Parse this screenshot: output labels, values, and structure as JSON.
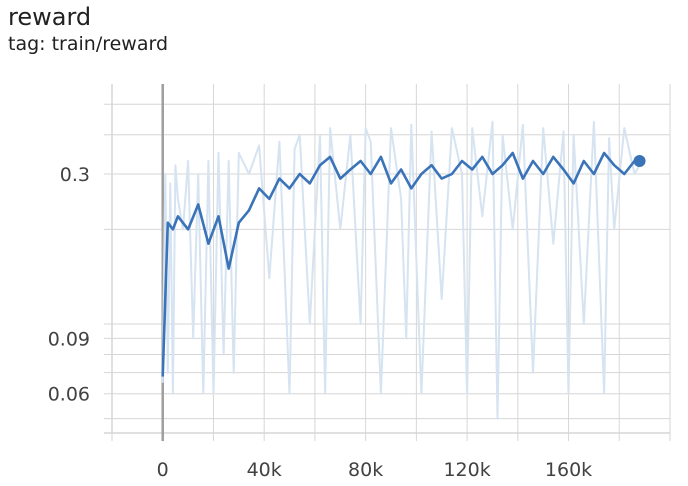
{
  "card": {
    "title": "reward",
    "subtitle": "tag: train/reward"
  },
  "colors": {
    "smoothed_line": "#3a73b7",
    "raw_line": "#d6e3f1",
    "grid": "#d6d6d6",
    "zero_axis": "#9e9e9e"
  },
  "chart_data": {
    "type": "line",
    "title": "reward",
    "subtitle": "tag: train/reward",
    "yscale": "log",
    "grid": true,
    "legend": "none",
    "x_ticks": [
      {
        "value": 0,
        "label": "0"
      },
      {
        "value": 40000,
        "label": "40k"
      },
      {
        "value": 80000,
        "label": "80k"
      },
      {
        "value": 120000,
        "label": "120k"
      },
      {
        "value": 160000,
        "label": "160k"
      }
    ],
    "y_ticks": [
      {
        "value": 0.3,
        "label": "0.3"
      },
      {
        "value": 0.09,
        "label": "0.09"
      },
      {
        "value": 0.06,
        "label": "0.06"
      }
    ],
    "xlim": [
      -20000,
      200000
    ],
    "ylim": [
      0.045,
      0.58
    ],
    "series": [
      {
        "role": "smoothed",
        "x": [
          0,
          2000,
          4000,
          6000,
          10000,
          14000,
          18000,
          22000,
          26000,
          30000,
          34000,
          38000,
          42000,
          46000,
          50000,
          54000,
          58000,
          62000,
          66000,
          70000,
          74000,
          78000,
          82000,
          86000,
          90000,
          94000,
          98000,
          102000,
          106000,
          110000,
          114000,
          118000,
          122000,
          126000,
          130000,
          134000,
          138000,
          142000,
          146000,
          150000,
          154000,
          158000,
          162000,
          166000,
          170000,
          174000,
          178000,
          182000,
          186000,
          188000
        ],
        "y": [
          0.068,
          0.21,
          0.2,
          0.22,
          0.2,
          0.24,
          0.18,
          0.22,
          0.15,
          0.21,
          0.23,
          0.27,
          0.25,
          0.29,
          0.27,
          0.3,
          0.28,
          0.32,
          0.34,
          0.29,
          0.31,
          0.33,
          0.3,
          0.34,
          0.28,
          0.31,
          0.27,
          0.3,
          0.32,
          0.29,
          0.3,
          0.33,
          0.31,
          0.34,
          0.3,
          0.32,
          0.35,
          0.29,
          0.33,
          0.3,
          0.34,
          0.31,
          0.28,
          0.33,
          0.3,
          0.35,
          0.32,
          0.3,
          0.33,
          0.33
        ]
      },
      {
        "role": "raw",
        "x": [
          0,
          1000,
          2000,
          3000,
          4000,
          5000,
          6000,
          8000,
          10000,
          12000,
          14000,
          16000,
          18000,
          20000,
          22000,
          24000,
          26000,
          28000,
          30000,
          34000,
          38000,
          42000,
          46000,
          50000,
          52000,
          54000,
          58000,
          62000,
          64000,
          66000,
          70000,
          74000,
          78000,
          80000,
          82000,
          86000,
          90000,
          94000,
          96000,
          98000,
          102000,
          106000,
          110000,
          114000,
          118000,
          120000,
          122000,
          126000,
          130000,
          132000,
          134000,
          138000,
          142000,
          146000,
          150000,
          154000,
          158000,
          160000,
          162000,
          166000,
          170000,
          174000,
          176000,
          178000,
          182000,
          186000,
          188000
        ],
        "y": [
          0.065,
          0.3,
          0.07,
          0.28,
          0.06,
          0.32,
          0.25,
          0.2,
          0.33,
          0.09,
          0.3,
          0.06,
          0.33,
          0.06,
          0.35,
          0.08,
          0.33,
          0.07,
          0.35,
          0.3,
          0.37,
          0.14,
          0.38,
          0.06,
          0.36,
          0.4,
          0.1,
          0.4,
          0.06,
          0.42,
          0.2,
          0.4,
          0.1,
          0.42,
          0.38,
          0.06,
          0.42,
          0.25,
          0.09,
          0.43,
          0.06,
          0.41,
          0.12,
          0.42,
          0.3,
          0.06,
          0.42,
          0.22,
          0.44,
          0.05,
          0.4,
          0.2,
          0.43,
          0.07,
          0.42,
          0.18,
          0.41,
          0.06,
          0.4,
          0.1,
          0.44,
          0.06,
          0.39,
          0.2,
          0.42,
          0.3,
          0.32
        ]
      }
    ]
  }
}
